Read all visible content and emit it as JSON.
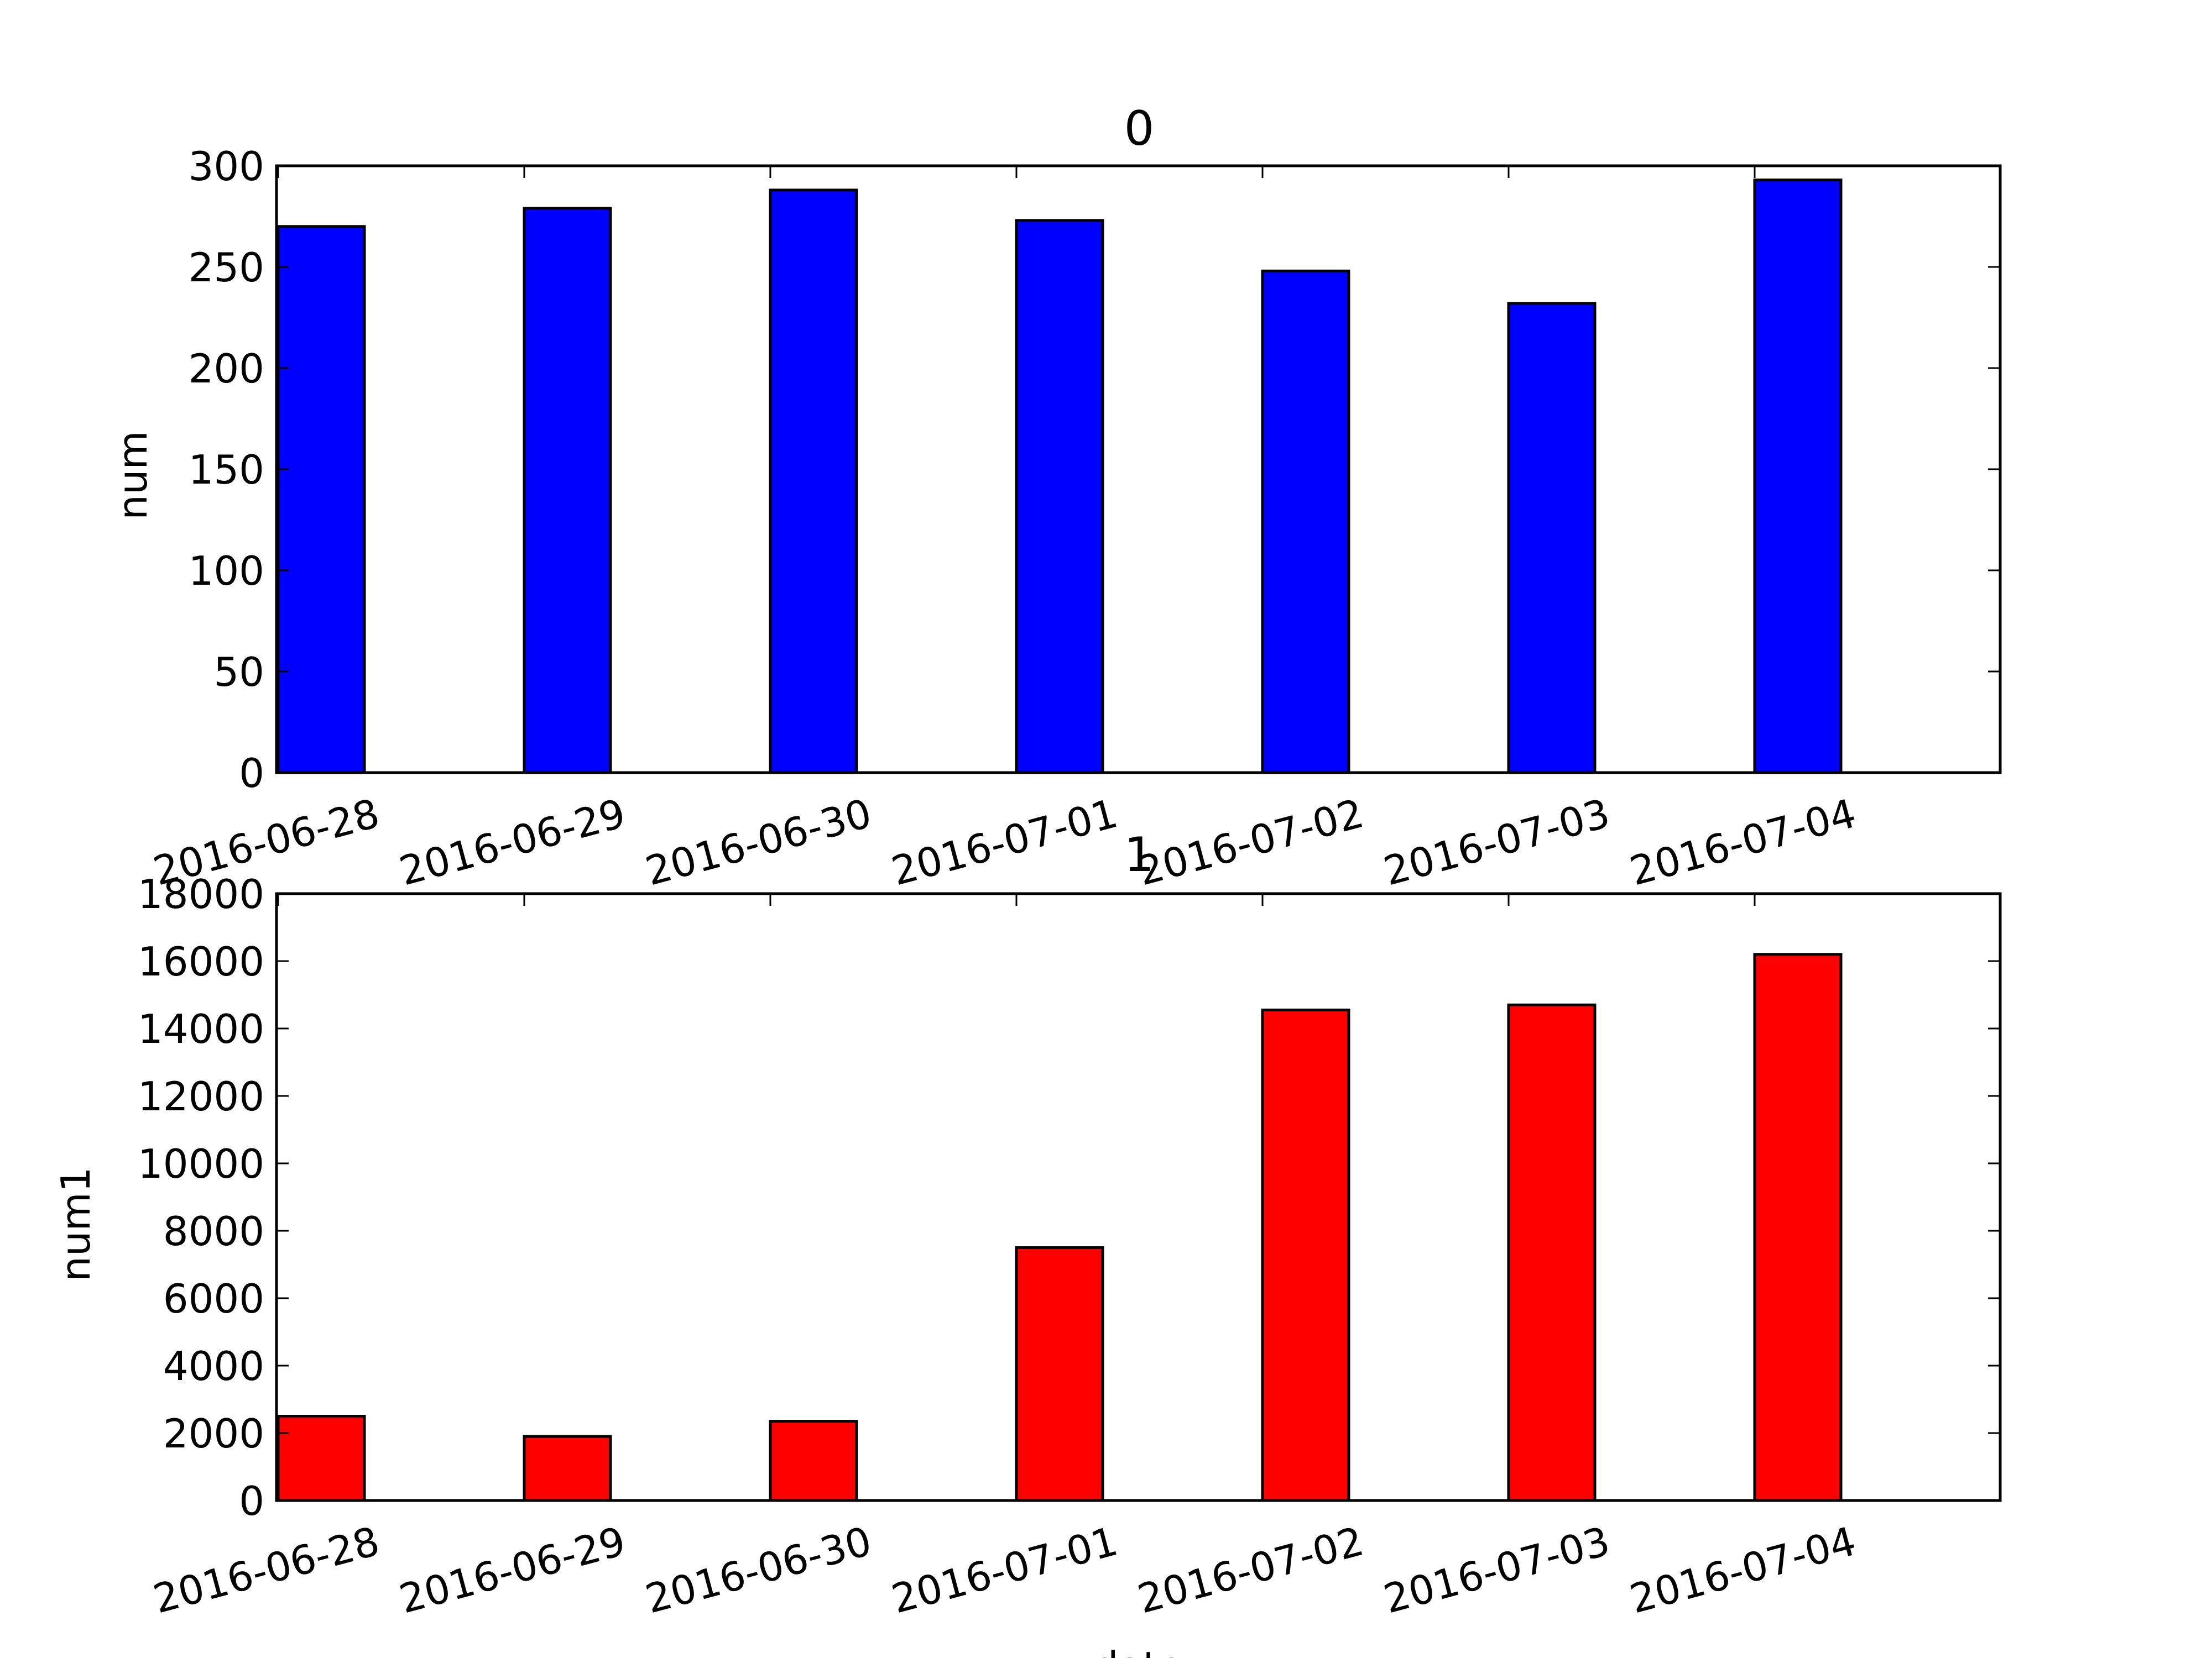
{
  "chart_data": [
    {
      "type": "bar",
      "title": "0",
      "xlabel": "",
      "ylabel": "num",
      "categories": [
        "2016-06-28",
        "2016-06-29",
        "2016-06-30",
        "2016-07-01",
        "2016-07-02",
        "2016-07-03",
        "2016-07-04"
      ],
      "series": [
        {
          "values": [
            270,
            279,
            288,
            273,
            248,
            232,
            293
          ]
        }
      ],
      "ylim": [
        0,
        300
      ],
      "yticks": [
        0,
        50,
        100,
        150,
        200,
        250,
        300
      ],
      "ytick_labels": [
        "0",
        "50",
        "100",
        "150",
        "200",
        "250",
        "300"
      ],
      "bar_color": "#0000ff",
      "grid": false,
      "legend": "none"
    },
    {
      "type": "bar",
      "title": "1",
      "xlabel": "date",
      "ylabel": "num1",
      "categories": [
        "2016-06-28",
        "2016-06-29",
        "2016-06-30",
        "2016-07-01",
        "2016-07-02",
        "2016-07-03",
        "2016-07-04"
      ],
      "series": [
        {
          "values": [
            2500,
            1900,
            2350,
            7500,
            14550,
            14700,
            16200
          ]
        }
      ],
      "ylim": [
        0,
        18000
      ],
      "yticks": [
        0,
        2000,
        4000,
        6000,
        8000,
        10000,
        12000,
        14000,
        16000,
        18000
      ],
      "ytick_labels": [
        "0",
        "2000",
        "4000",
        "6000",
        "8000",
        "10000",
        "12000",
        "14000",
        "16000",
        "18000"
      ],
      "bar_color": "#ff0000",
      "grid": false,
      "legend": "none"
    }
  ]
}
